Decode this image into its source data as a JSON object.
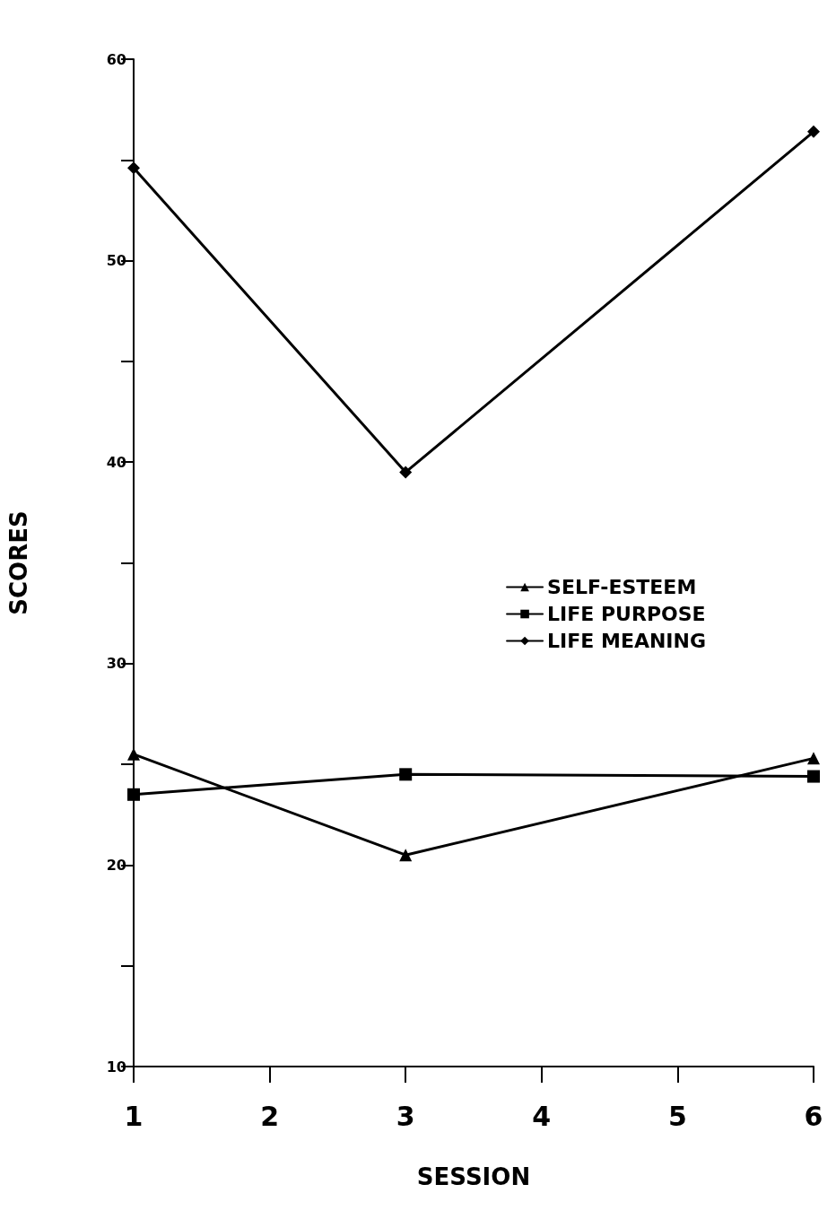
{
  "chart_data": {
    "type": "line",
    "xlabel": "SESSION",
    "ylabel": "SCORES",
    "x": [
      1,
      3,
      6
    ],
    "series": [
      {
        "name": "SELF-ESTEEM",
        "color": "#000000",
        "marker": "triangle",
        "values": [
          25.5,
          20.5,
          25.3
        ]
      },
      {
        "name": "LIFE PURPOSE",
        "color": "#000000",
        "marker": "square",
        "values": [
          23.5,
          24.5,
          24.4
        ]
      },
      {
        "name": "LIFE MEANING",
        "color": "#000000",
        "marker": "diamond",
        "values": [
          54.6,
          39.5,
          56.4
        ]
      }
    ],
    "xlim": [
      1,
      6
    ],
    "xticks": [
      1,
      2,
      3,
      4,
      5,
      6
    ],
    "ylim": [
      10,
      60
    ],
    "yticks": [
      10,
      {
        "value": 15,
        "label": null
      },
      20,
      {
        "value": 25,
        "label": null
      },
      30,
      {
        "value": 35,
        "label": null
      },
      40,
      {
        "value": 45,
        "label": null
      },
      50,
      {
        "value": 55,
        "label": null
      },
      60
    ],
    "grid": false,
    "legend": "right",
    "line_style": "solid"
  }
}
